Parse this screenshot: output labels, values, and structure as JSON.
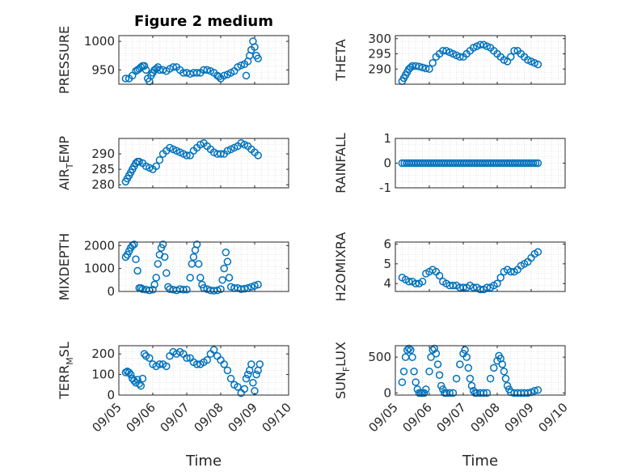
{
  "figure": {
    "title": "Figure 2 medium"
  },
  "chart_data": [
    {
      "type": "scatter",
      "title": "Figure 2 medium",
      "ylabel": "PRESSURE",
      "ylabel_parts": {
        "main": "PRESSURE"
      },
      "xlim": [
        0,
        5
      ],
      "ylim": [
        925,
        1010
      ],
      "yticks": [
        950,
        1000
      ],
      "ytick_labels": [
        "950",
        "1000"
      ],
      "grid": true,
      "x": [
        0.2,
        0.3,
        0.4,
        0.5,
        0.55,
        0.6,
        0.65,
        0.7,
        0.75,
        0.8,
        0.85,
        0.9,
        0.95,
        1.0,
        1.05,
        1.1,
        1.15,
        1.2,
        1.3,
        1.4,
        1.5,
        1.6,
        1.7,
        1.8,
        1.9,
        2.0,
        2.1,
        2.2,
        2.3,
        2.4,
        2.5,
        2.6,
        2.7,
        2.8,
        2.9,
        2.95,
        3.0,
        3.1,
        3.2,
        3.3,
        3.4,
        3.5,
        3.6,
        3.7,
        3.75,
        3.8,
        3.85,
        3.9,
        3.95,
        4.0,
        4.05,
        4.1
      ],
      "y": [
        935,
        935,
        940,
        948,
        950,
        952,
        955,
        957,
        957,
        950,
        935,
        930,
        940,
        945,
        950,
        952,
        955,
        950,
        950,
        948,
        952,
        955,
        955,
        950,
        945,
        945,
        943,
        945,
        945,
        945,
        950,
        950,
        948,
        945,
        940,
        938,
        935,
        940,
        942,
        945,
        948,
        955,
        958,
        960,
        940,
        965,
        975,
        985,
        1000,
        990,
        975,
        970
      ],
      "series_color": "#0072bd"
    },
    {
      "type": "scatter",
      "ylabel": "THETA",
      "ylabel_parts": {
        "main": "THETA"
      },
      "xlim": [
        0,
        5
      ],
      "ylim": [
        285,
        301
      ],
      "yticks": [
        290,
        295,
        300
      ],
      "ytick_labels": [
        "290",
        "295",
        "300"
      ],
      "grid": true,
      "x": [
        0.2,
        0.25,
        0.3,
        0.35,
        0.4,
        0.45,
        0.5,
        0.6,
        0.7,
        0.8,
        0.9,
        1.0,
        1.1,
        1.2,
        1.3,
        1.4,
        1.5,
        1.6,
        1.7,
        1.8,
        1.9,
        2.0,
        2.1,
        2.2,
        2.3,
        2.4,
        2.5,
        2.6,
        2.7,
        2.8,
        2.9,
        3.0,
        3.1,
        3.2,
        3.3,
        3.4,
        3.5,
        3.6,
        3.7,
        3.8,
        3.9,
        4.0,
        4.1,
        4.2
      ],
      "y": [
        286,
        287,
        288,
        289,
        290,
        290.5,
        291,
        291,
        290.8,
        290.5,
        290.2,
        290,
        292,
        294,
        295,
        296,
        296,
        295.5,
        295,
        294.5,
        294,
        294,
        295,
        296,
        297,
        297.5,
        298,
        298,
        297.5,
        297,
        296,
        295,
        294,
        293,
        292.5,
        294,
        296,
        296,
        295,
        294,
        293,
        292.5,
        292,
        291.5
      ],
      "series_color": "#0072bd"
    },
    {
      "type": "scatter",
      "ylabel": "AIR_TEMP",
      "ylabel_parts": {
        "pre": "AIR",
        "sub": "T",
        "post": "EMP"
      },
      "xlim": [
        0,
        5
      ],
      "ylim": [
        279,
        295
      ],
      "yticks": [
        280,
        285,
        290
      ],
      "ytick_labels": [
        "280",
        "285",
        "290"
      ],
      "grid": true,
      "x": [
        0.2,
        0.25,
        0.3,
        0.35,
        0.4,
        0.45,
        0.5,
        0.55,
        0.6,
        0.7,
        0.8,
        0.9,
        1.0,
        1.1,
        1.2,
        1.3,
        1.4,
        1.5,
        1.6,
        1.7,
        1.8,
        1.9,
        2.0,
        2.1,
        2.2,
        2.3,
        2.4,
        2.5,
        2.6,
        2.7,
        2.8,
        2.9,
        3.0,
        3.1,
        3.2,
        3.3,
        3.4,
        3.5,
        3.6,
        3.7,
        3.8,
        3.9,
        4.0,
        4.1
      ],
      "y": [
        281,
        282,
        283,
        284,
        285,
        286,
        287,
        287.5,
        287.5,
        287,
        286,
        285.5,
        285,
        286,
        288,
        290,
        291,
        292,
        291.5,
        291,
        290.5,
        290,
        289.5,
        289.5,
        291,
        292,
        293,
        293.5,
        292.5,
        291.5,
        290.5,
        290,
        290,
        290,
        291,
        291.5,
        292,
        292.5,
        293.5,
        293,
        292.5,
        291.5,
        290.5,
        289.5
      ],
      "series_color": "#0072bd"
    },
    {
      "type": "scatter",
      "ylabel": "RAINFALL",
      "ylabel_parts": {
        "main": "RAINFALL"
      },
      "xlim": [
        0,
        5
      ],
      "ylim": [
        -1,
        1
      ],
      "yticks": [
        -1,
        0,
        1
      ],
      "ytick_labels": [
        "-1",
        "0",
        "1"
      ],
      "grid": true,
      "x_range": [
        0.2,
        4.2
      ],
      "x_count": 60,
      "y_constant": 0,
      "series_color": "#0072bd"
    },
    {
      "type": "scatter",
      "ylabel": "MIXDEPTH",
      "ylabel_parts": {
        "main": "MIXDEPTH"
      },
      "xlim": [
        0,
        5
      ],
      "ylim": [
        0,
        2150
      ],
      "yticks": [
        0,
        1000,
        2000
      ],
      "ytick_labels": [
        "0",
        "1000",
        "2000"
      ],
      "grid": true,
      "x": [
        0.2,
        0.25,
        0.3,
        0.35,
        0.4,
        0.45,
        0.5,
        0.55,
        0.6,
        0.65,
        0.7,
        0.8,
        0.9,
        1.0,
        1.05,
        1.1,
        1.15,
        1.2,
        1.25,
        1.3,
        1.35,
        1.4,
        1.45,
        1.5,
        1.6,
        1.7,
        1.8,
        1.9,
        2.0,
        2.1,
        2.15,
        2.2,
        2.25,
        2.3,
        2.35,
        2.4,
        2.45,
        2.5,
        2.6,
        2.7,
        2.8,
        2.9,
        3.0,
        3.05,
        3.1,
        3.15,
        3.2,
        3.25,
        3.3,
        3.4,
        3.5,
        3.6,
        3.7,
        3.8,
        3.9,
        4.0,
        4.1
      ],
      "y": [
        1500,
        1600,
        1750,
        1900,
        2000,
        2050,
        1400,
        900,
        150,
        150,
        100,
        80,
        50,
        80,
        300,
        600,
        1200,
        1600,
        1900,
        2050,
        1500,
        800,
        200,
        100,
        80,
        50,
        100,
        80,
        80,
        600,
        1200,
        1500,
        1800,
        2050,
        1200,
        600,
        300,
        150,
        100,
        50,
        30,
        50,
        100,
        500,
        1000,
        1700,
        1300,
        600,
        200,
        150,
        150,
        100,
        120,
        150,
        200,
        250,
        300
      ],
      "series_color": "#0072bd"
    },
    {
      "type": "scatter",
      "ylabel": "H2OMIXRA",
      "ylabel_parts": {
        "main": "H2OMIXRA"
      },
      "xlim": [
        0,
        5
      ],
      "ylim": [
        3.6,
        6.1
      ],
      "yticks": [
        4,
        5,
        6
      ],
      "ytick_labels": [
        "4",
        "5",
        "6"
      ],
      "grid": true,
      "x": [
        0.2,
        0.3,
        0.4,
        0.5,
        0.6,
        0.7,
        0.8,
        0.9,
        1.0,
        1.1,
        1.2,
        1.3,
        1.4,
        1.5,
        1.6,
        1.7,
        1.8,
        1.9,
        2.0,
        2.1,
        2.2,
        2.3,
        2.4,
        2.5,
        2.6,
        2.7,
        2.8,
        2.9,
        3.0,
        3.1,
        3.2,
        3.3,
        3.4,
        3.5,
        3.6,
        3.7,
        3.8,
        3.9,
        4.0,
        4.1,
        4.2
      ],
      "y": [
        4.3,
        4.2,
        4.1,
        4.1,
        4.0,
        4.0,
        4.1,
        4.5,
        4.6,
        4.7,
        4.6,
        4.4,
        4.1,
        4.0,
        3.9,
        3.9,
        3.9,
        3.8,
        3.8,
        3.8,
        3.9,
        3.8,
        3.8,
        3.7,
        3.7,
        3.8,
        3.8,
        3.9,
        4.0,
        4.3,
        4.6,
        4.7,
        4.6,
        4.6,
        4.7,
        4.9,
        5.0,
        5.1,
        5.3,
        5.5,
        5.6
      ],
      "series_color": "#0072bd"
    },
    {
      "type": "scatter",
      "ylabel": "TERR_MSL",
      "ylabel_parts": {
        "pre": "TERR",
        "sub": "M",
        "post": "SL"
      },
      "xlim": [
        0,
        5
      ],
      "ylim": [
        0,
        240
      ],
      "yticks": [
        0,
        100,
        200
      ],
      "ytick_labels": [
        "0",
        "100",
        "200"
      ],
      "grid": true,
      "x": [
        0.2,
        0.25,
        0.3,
        0.35,
        0.4,
        0.45,
        0.5,
        0.55,
        0.6,
        0.65,
        0.7,
        0.75,
        0.8,
        0.9,
        1.0,
        1.1,
        1.2,
        1.3,
        1.4,
        1.5,
        1.6,
        1.7,
        1.8,
        1.9,
        2.0,
        2.1,
        2.2,
        2.3,
        2.4,
        2.5,
        2.6,
        2.7,
        2.8,
        2.9,
        3.0,
        3.1,
        3.2,
        3.3,
        3.4,
        3.5,
        3.6,
        3.7,
        3.75,
        3.8,
        3.85,
        3.9,
        3.95,
        4.0,
        4.05,
        4.1,
        4.15
      ],
      "y": [
        110,
        115,
        110,
        100,
        80,
        70,
        60,
        75,
        55,
        45,
        80,
        200,
        190,
        180,
        150,
        140,
        150,
        150,
        140,
        190,
        210,
        200,
        210,
        200,
        180,
        180,
        160,
        150,
        150,
        160,
        170,
        200,
        220,
        190,
        170,
        150,
        120,
        80,
        50,
        40,
        10,
        30,
        80,
        100,
        120,
        150,
        60,
        20,
        100,
        120,
        150
      ],
      "series_color": "#0072bd"
    },
    {
      "type": "scatter",
      "ylabel": "SUN_FLUX",
      "ylabel_parts": {
        "pre": "SUN",
        "sub": "F",
        "post": "LUX"
      },
      "xlim": [
        0,
        5
      ],
      "ylim": [
        -30,
        660
      ],
      "yticks": [
        0,
        500
      ],
      "ytick_labels": [
        "0",
        "500"
      ],
      "grid": true,
      "x": [
        0.2,
        0.25,
        0.3,
        0.35,
        0.4,
        0.45,
        0.5,
        0.55,
        0.6,
        0.65,
        0.7,
        0.75,
        0.8,
        0.85,
        0.9,
        1.0,
        1.05,
        1.1,
        1.15,
        1.2,
        1.25,
        1.3,
        1.35,
        1.4,
        1.45,
        1.5,
        1.6,
        1.7,
        1.8,
        1.9,
        2.0,
        2.05,
        2.1,
        2.15,
        2.2,
        2.25,
        2.3,
        2.35,
        2.4,
        2.5,
        2.6,
        2.7,
        2.8,
        2.9,
        3.0,
        3.05,
        3.1,
        3.15,
        3.2,
        3.25,
        3.3,
        3.35,
        3.4,
        3.5,
        3.6,
        3.7,
        3.8,
        3.9,
        4.0,
        4.1,
        4.2
      ],
      "y": [
        150,
        300,
        500,
        600,
        620,
        600,
        500,
        300,
        150,
        50,
        0,
        0,
        0,
        0,
        50,
        300,
        500,
        600,
        620,
        550,
        400,
        250,
        100,
        50,
        0,
        0,
        0,
        0,
        200,
        400,
        550,
        600,
        500,
        350,
        200,
        100,
        30,
        0,
        0,
        0,
        0,
        0,
        200,
        350,
        450,
        520,
        480,
        400,
        300,
        200,
        100,
        50,
        10,
        0,
        0,
        0,
        0,
        0,
        10,
        30,
        40
      ],
      "series_color": "#0072bd"
    }
  ],
  "xaxis": {
    "xlim": [
      0,
      5
    ],
    "ticks": [
      0,
      1,
      2,
      3,
      4,
      5
    ],
    "tick_labels": [
      "09/05",
      "09/06",
      "09/07",
      "09/08",
      "09/09",
      "09/10"
    ],
    "label": "Time"
  }
}
